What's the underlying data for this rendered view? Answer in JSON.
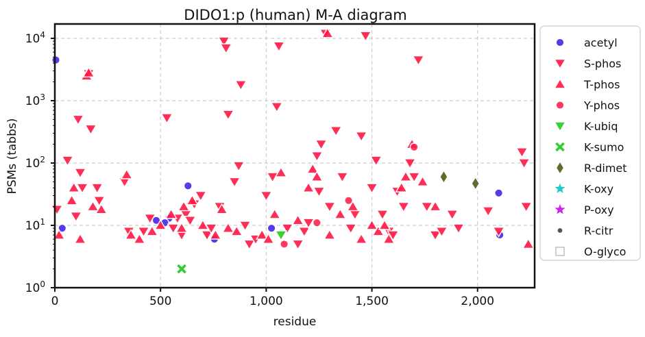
{
  "chart_data": {
    "type": "scatter",
    "title": "DIDO1:p (human) M-A diagram",
    "xlabel": "residue",
    "ylabel": "PSMs (tabbs)",
    "xlim": [
      0,
      2270
    ],
    "ylim": [
      1,
      17000
    ],
    "y_scale": "log",
    "grid": true,
    "legend_position": "outside-right",
    "x_ticks": [
      {
        "value": 0,
        "label": "0"
      },
      {
        "value": 500,
        "label": "500"
      },
      {
        "value": 1000,
        "label": "1,000"
      },
      {
        "value": 1500,
        "label": "1,500"
      },
      {
        "value": 2000,
        "label": "2,000"
      }
    ],
    "y_ticks": [
      {
        "value": 1,
        "base": "10",
        "exp": "0"
      },
      {
        "value": 10,
        "base": "10",
        "exp": "1"
      },
      {
        "value": 100,
        "base": "10",
        "exp": "2"
      },
      {
        "value": 1000,
        "base": "10",
        "exp": "3"
      },
      {
        "value": 10000,
        "base": "10",
        "exp": "4"
      }
    ],
    "series": [
      {
        "name": "acetyl",
        "marker": "circle",
        "color": "#3a17e6",
        "points": [
          [
            5,
            4500
          ],
          [
            35,
            9
          ],
          [
            540,
            13
          ],
          [
            630,
            43
          ],
          [
            755,
            6
          ],
          [
            1025,
            9
          ],
          [
            2100,
            33
          ],
          [
            2105,
            7
          ],
          [
            480,
            12
          ],
          [
            520,
            11
          ]
        ]
      },
      {
        "name": "S-phos",
        "marker": "triangle-down",
        "color": "#ff1744",
        "points": [
          [
            10,
            18
          ],
          [
            60,
            110
          ],
          [
            100,
            14
          ],
          [
            110,
            500
          ],
          [
            120,
            70
          ],
          [
            130,
            40
          ],
          [
            160,
            2700
          ],
          [
            170,
            350
          ],
          [
            200,
            40
          ],
          [
            210,
            25
          ],
          [
            330,
            50
          ],
          [
            350,
            8
          ],
          [
            420,
            8
          ],
          [
            450,
            13
          ],
          [
            530,
            530
          ],
          [
            560,
            9
          ],
          [
            580,
            13
          ],
          [
            600,
            7
          ],
          [
            620,
            15
          ],
          [
            640,
            12
          ],
          [
            660,
            22
          ],
          [
            690,
            30
          ],
          [
            720,
            7
          ],
          [
            740,
            9
          ],
          [
            780,
            20
          ],
          [
            800,
            9000
          ],
          [
            810,
            7000
          ],
          [
            820,
            600
          ],
          [
            850,
            50
          ],
          [
            870,
            90
          ],
          [
            880,
            1800
          ],
          [
            900,
            10
          ],
          [
            920,
            5
          ],
          [
            950,
            6
          ],
          [
            1000,
            30
          ],
          [
            1030,
            60
          ],
          [
            1050,
            800
          ],
          [
            1060,
            7500
          ],
          [
            1100,
            9
          ],
          [
            1150,
            5
          ],
          [
            1180,
            8
          ],
          [
            1200,
            11
          ],
          [
            1240,
            130
          ],
          [
            1250,
            35
          ],
          [
            1260,
            200
          ],
          [
            1280,
            12000
          ],
          [
            1300,
            20
          ],
          [
            1330,
            330
          ],
          [
            1360,
            60
          ],
          [
            1400,
            9
          ],
          [
            1420,
            15
          ],
          [
            1450,
            270
          ],
          [
            1470,
            11000
          ],
          [
            1500,
            40
          ],
          [
            1520,
            110
          ],
          [
            1550,
            15
          ],
          [
            1580,
            8
          ],
          [
            1600,
            7
          ],
          [
            1620,
            35
          ],
          [
            1650,
            20
          ],
          [
            1680,
            100
          ],
          [
            1700,
            60
          ],
          [
            1720,
            4500
          ],
          [
            1760,
            20
          ],
          [
            1800,
            7
          ],
          [
            1830,
            8
          ],
          [
            1880,
            15
          ],
          [
            1910,
            9
          ],
          [
            2050,
            17
          ],
          [
            2100,
            8
          ],
          [
            2210,
            150
          ],
          [
            2220,
            100
          ],
          [
            2230,
            20
          ]
        ]
      },
      {
        "name": "T-phos",
        "marker": "triangle-up",
        "color": "#ff1744",
        "points": [
          [
            20,
            7
          ],
          [
            80,
            25
          ],
          [
            90,
            40
          ],
          [
            120,
            6
          ],
          [
            150,
            2500
          ],
          [
            160,
            2800
          ],
          [
            180,
            20
          ],
          [
            220,
            18
          ],
          [
            340,
            65
          ],
          [
            360,
            7
          ],
          [
            400,
            6
          ],
          [
            460,
            8
          ],
          [
            500,
            10
          ],
          [
            550,
            15
          ],
          [
            600,
            9
          ],
          [
            610,
            20
          ],
          [
            650,
            25
          ],
          [
            700,
            10
          ],
          [
            760,
            7
          ],
          [
            790,
            18
          ],
          [
            820,
            9
          ],
          [
            860,
            8
          ],
          [
            980,
            7
          ],
          [
            1010,
            6
          ],
          [
            1040,
            15
          ],
          [
            1070,
            70
          ],
          [
            1150,
            12
          ],
          [
            1200,
            40
          ],
          [
            1220,
            80
          ],
          [
            1240,
            60
          ],
          [
            1290,
            12000
          ],
          [
            1300,
            7
          ],
          [
            1350,
            15
          ],
          [
            1410,
            20
          ],
          [
            1450,
            6
          ],
          [
            1500,
            10
          ],
          [
            1530,
            8
          ],
          [
            1560,
            10
          ],
          [
            1580,
            6
          ],
          [
            1640,
            40
          ],
          [
            1660,
            60
          ],
          [
            1690,
            200
          ],
          [
            1740,
            50
          ],
          [
            1800,
            20
          ],
          [
            2240,
            5
          ]
        ]
      },
      {
        "name": "Y-phos",
        "marker": "circle",
        "color": "#ff1744",
        "points": [
          [
            1085,
            5
          ],
          [
            1240,
            11
          ],
          [
            1390,
            25
          ],
          [
            1700,
            180
          ]
        ]
      },
      {
        "name": "K-ubiq",
        "marker": "triangle-down",
        "color": "#22cc22",
        "points": [
          [
            1070,
            7
          ]
        ]
      },
      {
        "name": "K-sumo",
        "marker": "x",
        "color": "#33cc33",
        "points": [
          [
            600,
            2
          ]
        ]
      },
      {
        "name": "R-dimet",
        "marker": "diamond",
        "color": "#5c6020",
        "points": [
          [
            1840,
            60
          ],
          [
            1990,
            47
          ]
        ]
      },
      {
        "name": "K-oxy",
        "marker": "star",
        "color": "#22cccc",
        "points": []
      },
      {
        "name": "P-oxy",
        "marker": "star",
        "color": "#cc22ee",
        "points": []
      },
      {
        "name": "R-citr",
        "marker": "dot",
        "color": "#555555",
        "points": []
      },
      {
        "name": "O-glyco",
        "marker": "square-open",
        "color": "#bbbbbb",
        "points": []
      }
    ]
  }
}
